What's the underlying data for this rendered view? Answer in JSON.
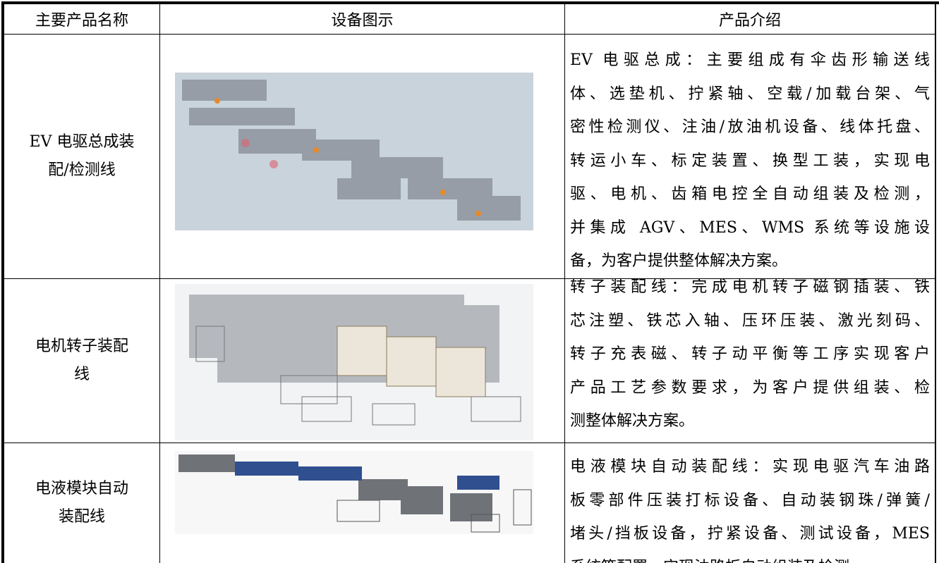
{
  "table": {
    "header": [
      "主要产品名称",
      "设备图示",
      "产品介绍"
    ],
    "rows": [
      {
        "name": [
          "EV 电驱总成装",
          "配/检测线"
        ],
        "description": [
          "EV 电驱总成：主要组成有伞齿形输送线",
          "体、选垫机、拧紧轴、空载/加载台架、气",
          "密性检测仪、注油/放油机设备、线体托盘、",
          "转运小车、标定装置、换型工装，实现电",
          "驱、电机、齿箱电控全自动组装及检测，",
          "并集成 AGV、MES、WMS 系统等设施设",
          "备，为客户提供整体解决方案。"
        ]
      },
      {
        "name": [
          "电机转子装配",
          "线"
        ],
        "description": [
          "转子装配线：完成电机转子磁钢插装、铁",
          "芯注塑、铁芯入轴、压环压装、激光刻码、",
          "转子充表磁、转子动平衡等工序实现客户",
          "产品工艺参数要求，为客户提供组装、检",
          "测整体解决方案。"
        ]
      },
      {
        "name": [
          "电液模块自动",
          "装配线"
        ],
        "description": [
          "电液模块自动装配线：实现电驱汽车油路",
          "板零部件压装打标设备、自动装钢珠/弹簧/",
          "堵头/挡板设备，拧紧设备、测试设备，MES",
          "系统等配置，实现油路板自动组装及检测。"
        ]
      }
    ]
  }
}
